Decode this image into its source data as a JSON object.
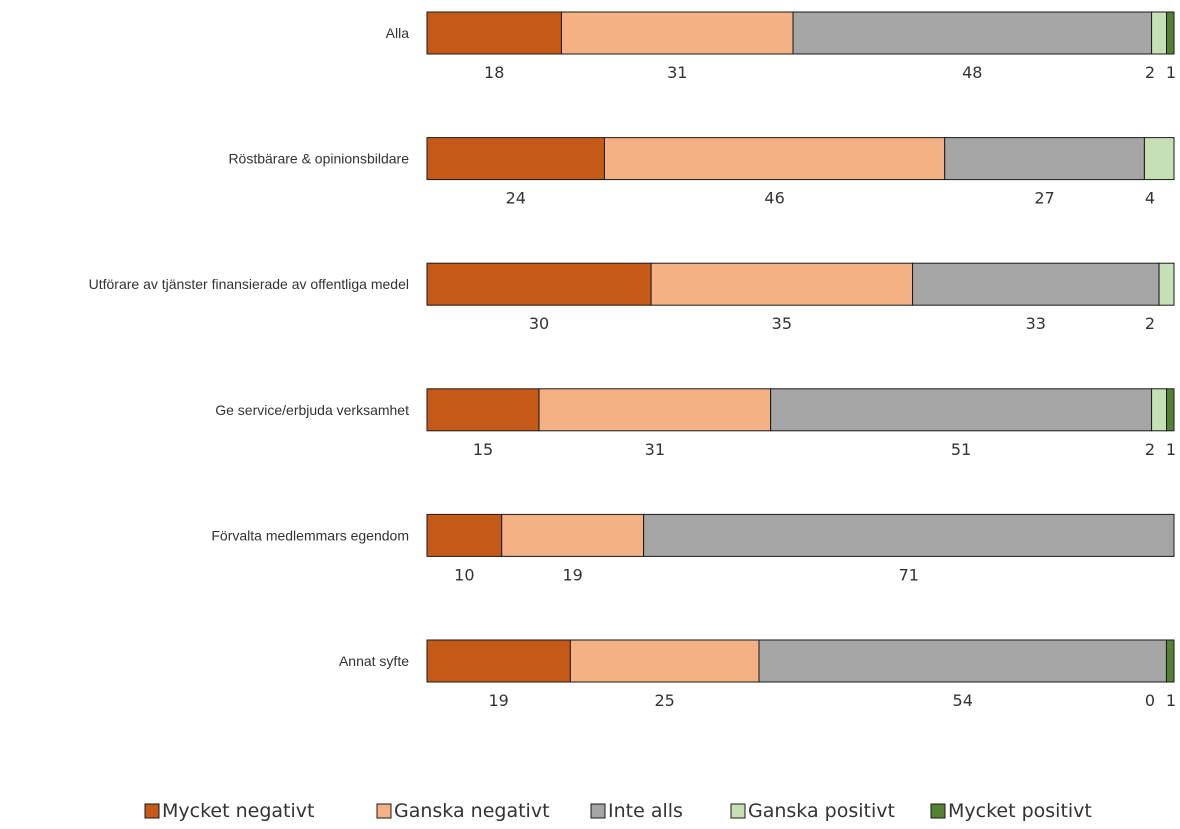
{
  "chart_data": {
    "type": "bar",
    "orientation": "horizontal",
    "stacked": "percent",
    "categories": [
      "Alla",
      "Röstbärare & opinionsbildare",
      "Utförare av tjänster finansierade av offentliga medel",
      "Ge service/erbjuda verksamhet",
      "Förvalta medlemmars egendom",
      "Annat syfte"
    ],
    "series": [
      {
        "name": "Mycket negativt",
        "color": "#c55a18",
        "values": [
          18,
          24,
          30,
          15,
          10,
          19
        ]
      },
      {
        "name": "Ganska negativt",
        "color": "#f4b183",
        "values": [
          31,
          46,
          35,
          31,
          19,
          25
        ]
      },
      {
        "name": "Inte alls",
        "color": "#a5a5a5",
        "values": [
          48,
          27,
          33,
          51,
          71,
          54
        ]
      },
      {
        "name": "Ganska positivt",
        "color": "#c5e0b4",
        "values": [
          2,
          4,
          2,
          2,
          null,
          0
        ]
      },
      {
        "name": "Mycket positivt",
        "color": "#548235",
        "values": [
          1,
          null,
          null,
          1,
          null,
          1
        ]
      }
    ],
    "legend_position": "bottom",
    "grid": false,
    "title": "",
    "xlabel": "",
    "ylabel": ""
  }
}
